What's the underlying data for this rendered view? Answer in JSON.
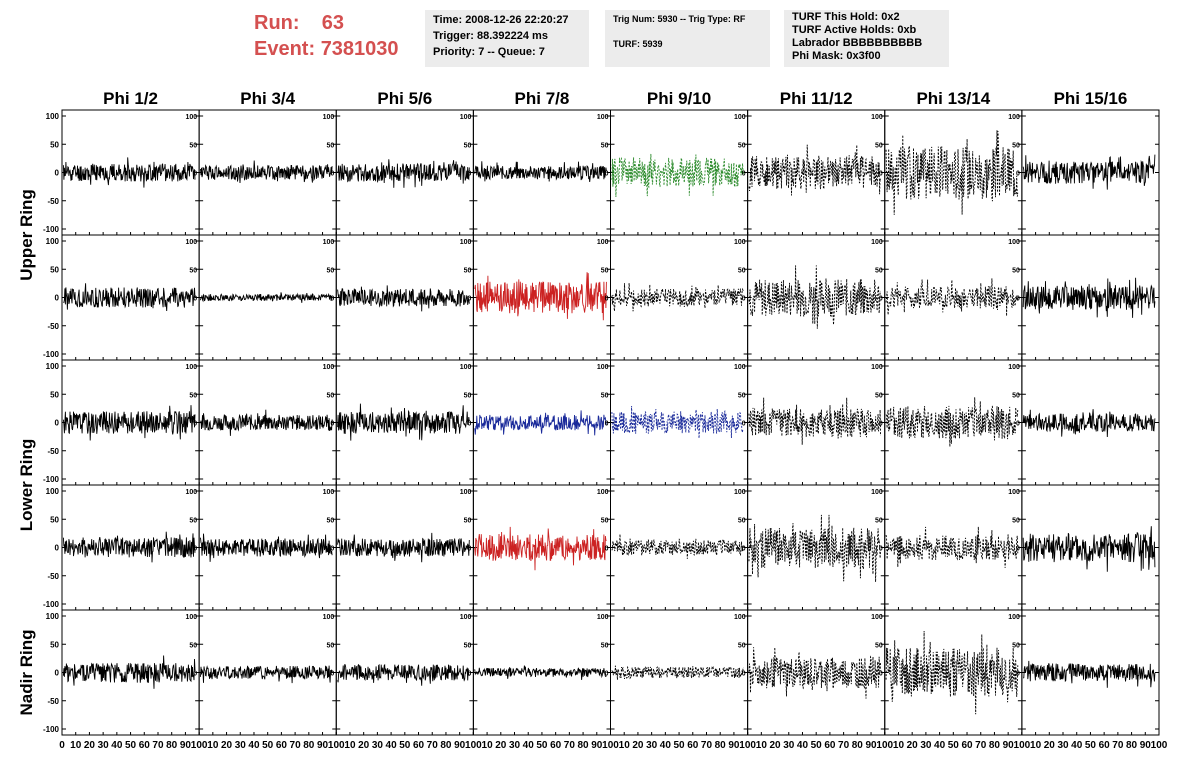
{
  "header": {
    "run_label": "Run:",
    "run_value": "63",
    "event_label": "Event:",
    "event_value": "7381030",
    "time": "Time: 2008-12-26 22:20:27",
    "trigger": "Trigger: 88.392224 ms",
    "priority": "Priority: 7 -- Queue: 7",
    "trig_num": "Trig Num: 5930 -- Trig Type: RF",
    "turf": "TURF: 5939",
    "turf_hold": "TURF This Hold: 0x2",
    "turf_active": "TURF Active Holds: 0xb",
    "labrador": "Labrador BBBBBBBBBB",
    "phi_mask": "Phi Mask: 0x3f00"
  },
  "chart_data": {
    "type": "line",
    "column_labels": [
      "Phi 1/2",
      "Phi 3/4",
      "Phi 5/6",
      "Phi 7/8",
      "Phi 9/10",
      "Phi 11/12",
      "Phi 13/14",
      "Phi 15/16"
    ],
    "ring_labels": [
      "Upper Ring",
      "Lower Ring",
      "Nadir Ring"
    ],
    "xlim": [
      0,
      100
    ],
    "ylim": [
      -100,
      100
    ],
    "x_ticks": [
      0,
      10,
      20,
      30,
      40,
      50,
      60,
      70,
      80,
      90,
      100
    ],
    "y_ticks": [
      100,
      50,
      0,
      -50,
      -100
    ],
    "colors": {
      "default": "#000000",
      "red": "#cc2222",
      "blue": "#1a2a9a",
      "green": "#2a8a2a"
    },
    "panels": [
      {
        "row": 0,
        "col": 0,
        "amplitude": 16,
        "color": "default",
        "dashed": false,
        "seed": 11
      },
      {
        "row": 0,
        "col": 1,
        "amplitude": 13,
        "color": "default",
        "dashed": false,
        "seed": 12
      },
      {
        "row": 0,
        "col": 2,
        "amplitude": 16,
        "color": "default",
        "dashed": false,
        "seed": 13
      },
      {
        "row": 0,
        "col": 3,
        "amplitude": 12,
        "color": "default",
        "dashed": false,
        "seed": 14
      },
      {
        "row": 0,
        "col": 4,
        "amplitude": 26,
        "color": "green",
        "dashed": true,
        "seed": 15
      },
      {
        "row": 0,
        "col": 5,
        "amplitude": 30,
        "color": "default",
        "dashed": true,
        "seed": 16
      },
      {
        "row": 0,
        "col": 6,
        "amplitude": 48,
        "color": "default",
        "dashed": true,
        "seed": 17
      },
      {
        "row": 0,
        "col": 7,
        "amplitude": 20,
        "color": "default",
        "dashed": false,
        "seed": 18
      },
      {
        "row": 1,
        "col": 0,
        "amplitude": 18,
        "color": "default",
        "dashed": false,
        "seed": 21
      },
      {
        "row": 1,
        "col": 1,
        "amplitude": 6,
        "color": "default",
        "dashed": false,
        "seed": 22
      },
      {
        "row": 1,
        "col": 2,
        "amplitude": 16,
        "color": "default",
        "dashed": false,
        "seed": 23
      },
      {
        "row": 1,
        "col": 3,
        "amplitude": 28,
        "color": "red",
        "dashed": false,
        "seed": 24
      },
      {
        "row": 1,
        "col": 4,
        "amplitude": 16,
        "color": "default",
        "dashed": true,
        "seed": 25
      },
      {
        "row": 1,
        "col": 5,
        "amplitude": 34,
        "color": "default",
        "dashed": true,
        "seed": 26
      },
      {
        "row": 1,
        "col": 6,
        "amplitude": 20,
        "color": "default",
        "dashed": true,
        "seed": 27
      },
      {
        "row": 1,
        "col": 7,
        "amplitude": 22,
        "color": "default",
        "dashed": false,
        "seed": 28
      },
      {
        "row": 2,
        "col": 0,
        "amplitude": 20,
        "color": "default",
        "dashed": false,
        "seed": 31
      },
      {
        "row": 2,
        "col": 1,
        "amplitude": 14,
        "color": "default",
        "dashed": false,
        "seed": 32
      },
      {
        "row": 2,
        "col": 2,
        "amplitude": 20,
        "color": "default",
        "dashed": false,
        "seed": 33
      },
      {
        "row": 2,
        "col": 3,
        "amplitude": 14,
        "color": "blue",
        "dashed": false,
        "seed": 34
      },
      {
        "row": 2,
        "col": 4,
        "amplitude": 20,
        "color": "blue",
        "dashed": true,
        "seed": 35
      },
      {
        "row": 2,
        "col": 5,
        "amplitude": 26,
        "color": "default",
        "dashed": true,
        "seed": 36
      },
      {
        "row": 2,
        "col": 6,
        "amplitude": 30,
        "color": "default",
        "dashed": true,
        "seed": 37
      },
      {
        "row": 2,
        "col": 7,
        "amplitude": 16,
        "color": "default",
        "dashed": false,
        "seed": 38
      },
      {
        "row": 3,
        "col": 0,
        "amplitude": 18,
        "color": "default",
        "dashed": false,
        "seed": 41
      },
      {
        "row": 3,
        "col": 1,
        "amplitude": 16,
        "color": "default",
        "dashed": false,
        "seed": 42
      },
      {
        "row": 3,
        "col": 2,
        "amplitude": 16,
        "color": "default",
        "dashed": false,
        "seed": 43
      },
      {
        "row": 3,
        "col": 3,
        "amplitude": 24,
        "color": "red",
        "dashed": false,
        "seed": 44
      },
      {
        "row": 3,
        "col": 4,
        "amplitude": 14,
        "color": "default",
        "dashed": true,
        "seed": 45
      },
      {
        "row": 3,
        "col": 5,
        "amplitude": 36,
        "color": "default",
        "dashed": true,
        "seed": 46
      },
      {
        "row": 3,
        "col": 6,
        "amplitude": 22,
        "color": "default",
        "dashed": true,
        "seed": 47
      },
      {
        "row": 3,
        "col": 7,
        "amplitude": 26,
        "color": "default",
        "dashed": false,
        "seed": 48
      },
      {
        "row": 4,
        "col": 0,
        "amplitude": 18,
        "color": "default",
        "dashed": false,
        "seed": 51
      },
      {
        "row": 4,
        "col": 1,
        "amplitude": 12,
        "color": "default",
        "dashed": false,
        "seed": 52
      },
      {
        "row": 4,
        "col": 2,
        "amplitude": 14,
        "color": "default",
        "dashed": false,
        "seed": 53
      },
      {
        "row": 4,
        "col": 3,
        "amplitude": 8,
        "color": "default",
        "dashed": false,
        "seed": 54
      },
      {
        "row": 4,
        "col": 4,
        "amplitude": 10,
        "color": "default",
        "dashed": true,
        "seed": 55
      },
      {
        "row": 4,
        "col": 5,
        "amplitude": 28,
        "color": "default",
        "dashed": true,
        "seed": 56
      },
      {
        "row": 4,
        "col": 6,
        "amplitude": 44,
        "color": "default",
        "dashed": true,
        "seed": 57
      },
      {
        "row": 4,
        "col": 7,
        "amplitude": 16,
        "color": "default",
        "dashed": false,
        "seed": 58
      }
    ]
  }
}
